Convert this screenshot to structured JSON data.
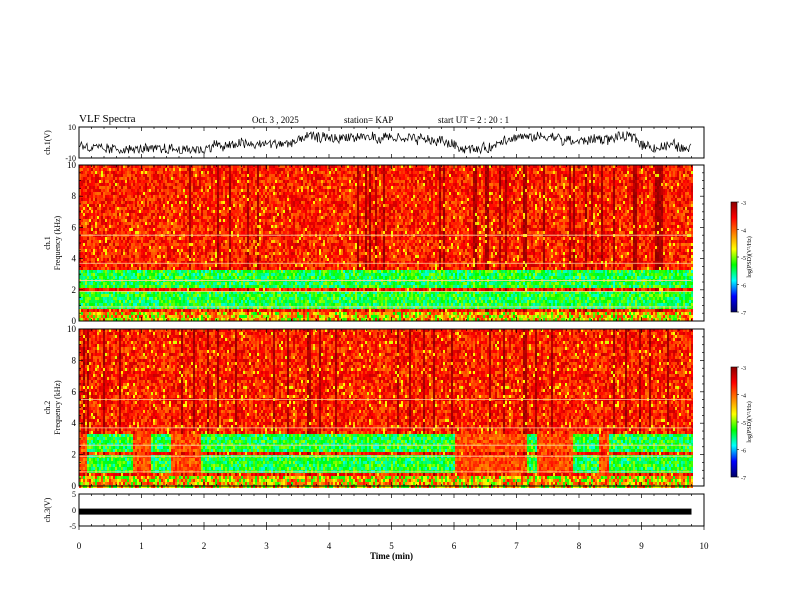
{
  "header": {
    "title": "VLF Spectra",
    "date": "Oct. 3 , 2025",
    "station": "station= KAP",
    "start": "start UT = 2 : 20 : 1"
  },
  "colorbar": {
    "label": "log(PSD)(V²/Hz)",
    "ticks": [
      "-3",
      "-4",
      "-5",
      "-6",
      "-7"
    ],
    "stops": [
      "#8b0000",
      "#ff0000",
      "#ff8000",
      "#ffff00",
      "#00ff00",
      "#00ffff",
      "#0000ff",
      "#000066"
    ]
  },
  "chart_data": [
    {
      "type": "line",
      "panel": "ch.1(V)",
      "ylabel": "ch.1(V)",
      "ylim": [
        -10,
        10
      ],
      "yticks": [
        "10",
        "-10"
      ],
      "xlim": [
        0,
        10
      ],
      "series_description_values": {
        "min": -7,
        "max": 8,
        "typical_center": -1
      }
    },
    {
      "type": "heatmap",
      "panel": "ch.1 spectrogram",
      "ylabel": "ch.1 Frequency (kHz)",
      "ylabel_top": "ch.1",
      "ylabel_main": "Frequency (kHz)",
      "ylim": [
        0,
        10
      ],
      "yticks": [
        "0",
        "2",
        "4",
        "6",
        "8",
        "10"
      ],
      "xlim": [
        0,
        10
      ],
      "data_end_min": 9.8,
      "bands_khz": [
        [
          0.8,
          1.9
        ],
        [
          2.1,
          3.3
        ]
      ],
      "log_psd_range": [
        -7,
        -3
      ]
    },
    {
      "type": "heatmap",
      "panel": "ch.2 spectrogram",
      "ylabel": "ch.2 Frequency (kHz)",
      "ylabel_top": "ch.2",
      "ylabel_main": "Frequency (kHz)",
      "ylim": [
        0,
        10
      ],
      "yticks": [
        "0",
        "2",
        "4",
        "6",
        "8",
        "10"
      ],
      "xlim": [
        0,
        10
      ],
      "data_end_min": 9.8,
      "bands_khz": [
        [
          0.8,
          1.9
        ],
        [
          2.1,
          3.3
        ]
      ],
      "log_psd_range": [
        -7,
        -3
      ]
    },
    {
      "type": "line",
      "panel": "ch.3(V)",
      "ylabel": "ch.3(V)",
      "ylim": [
        -5,
        5
      ],
      "yticks": [
        "5",
        "0",
        "-5"
      ],
      "xlim": [
        0,
        10
      ],
      "xlabel": "Time (min)",
      "xticks": [
        "0",
        "1",
        "2",
        "3",
        "4",
        "5",
        "6",
        "7",
        "8",
        "9",
        "10"
      ],
      "level_v": -0.5
    }
  ]
}
